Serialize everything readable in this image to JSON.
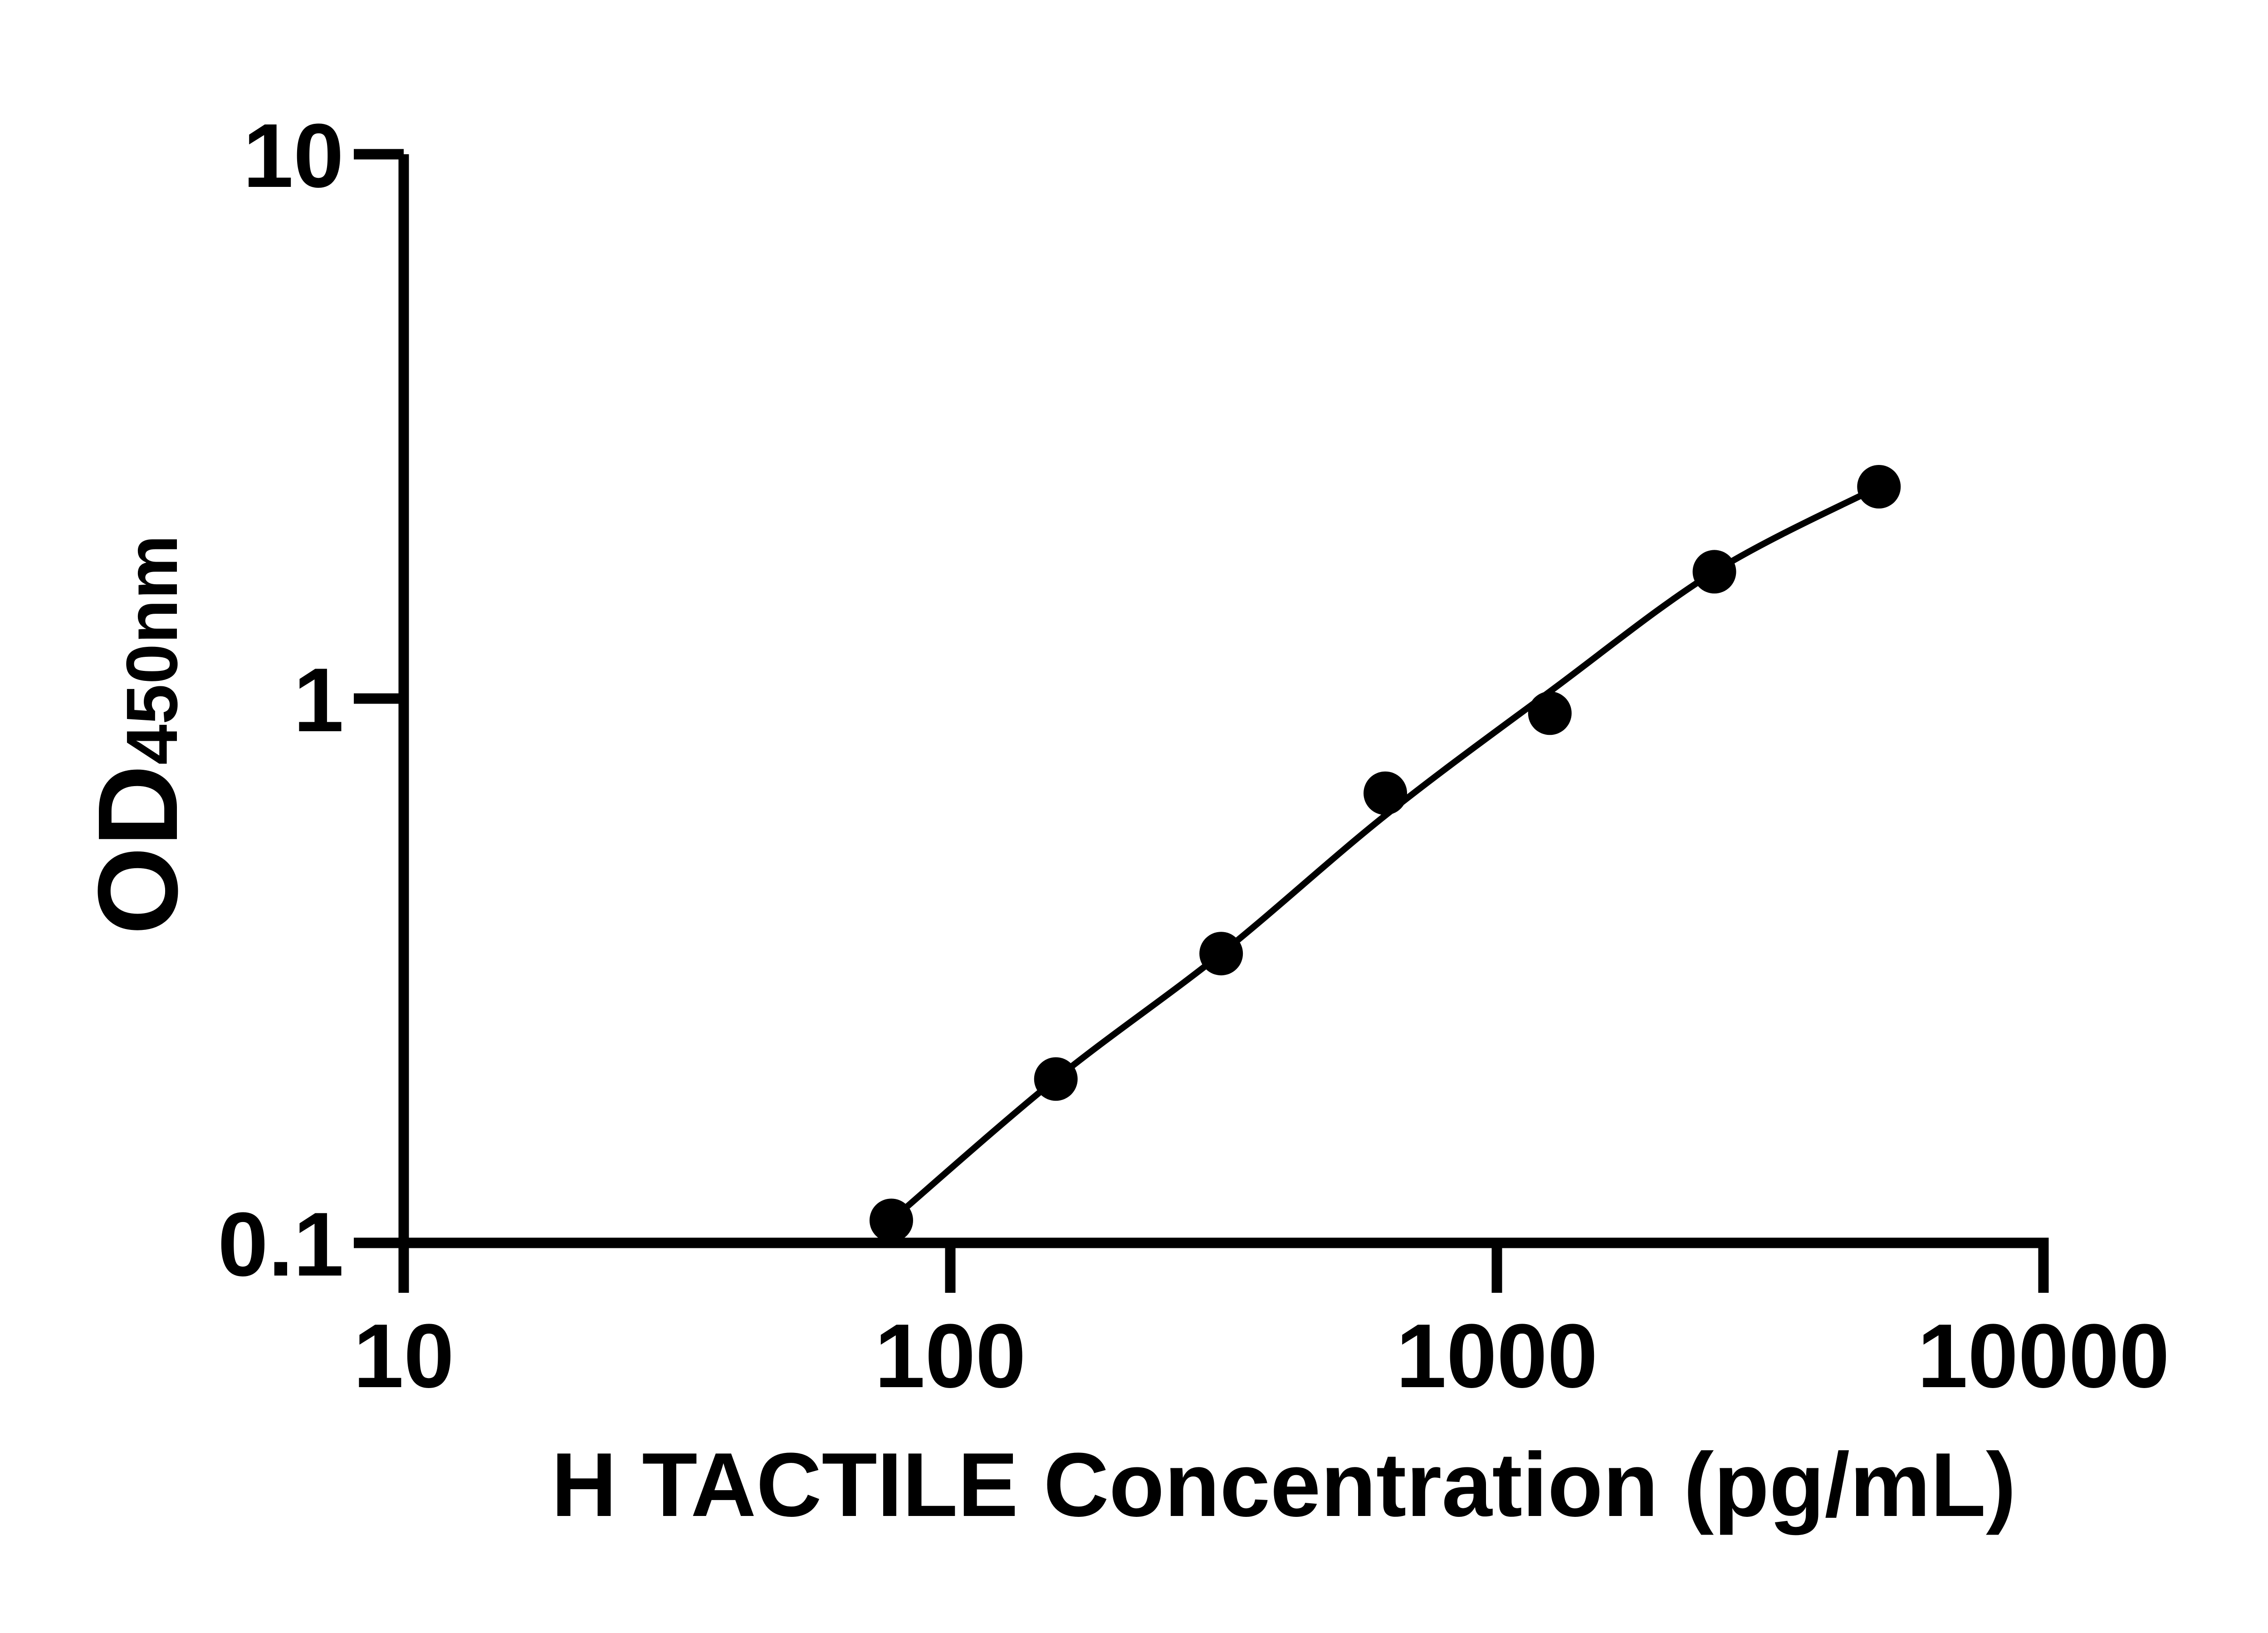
{
  "page": {
    "background_color": "#ffffff",
    "foreground_color": "#000000"
  },
  "chart_data": {
    "type": "scatter",
    "subtype": "ELISA standard curve (scatter with fitted line)",
    "title": "",
    "xlabel": "H TACTILE Concentration (pg/mL)",
    "ylabel": "OD450nm",
    "ylabel_main": "OD",
    "ylabel_sub": "450nm",
    "x_scale": "log10",
    "y_scale": "log10",
    "xlim": [
      10,
      10000
    ],
    "ylim": [
      0.1,
      10
    ],
    "grid": false,
    "legend_position": "none",
    "x_ticks": [
      {
        "value": 10,
        "label": "10"
      },
      {
        "value": 100,
        "label": "100"
      },
      {
        "value": 1000,
        "label": "1000"
      },
      {
        "value": 10000,
        "label": "10000"
      }
    ],
    "y_ticks": [
      {
        "value": 10,
        "label": "10"
      },
      {
        "value": 1,
        "label": "1"
      },
      {
        "value": 0.1,
        "label": "0.1"
      }
    ],
    "series": [
      {
        "name": "standard-points",
        "type": "scatter",
        "marker": "filled-circle",
        "color": "#000000",
        "points": [
          {
            "x": 78,
            "y": 0.11
          },
          {
            "x": 156,
            "y": 0.2
          },
          {
            "x": 313,
            "y": 0.34
          },
          {
            "x": 625,
            "y": 0.67
          },
          {
            "x": 1250,
            "y": 0.94
          },
          {
            "x": 2500,
            "y": 1.71
          },
          {
            "x": 5000,
            "y": 2.45
          }
        ]
      },
      {
        "name": "fitted-curve",
        "type": "line",
        "color": "#000000",
        "points": [
          {
            "x": 78,
            "y": 0.11
          },
          {
            "x": 156,
            "y": 0.2
          },
          {
            "x": 313,
            "y": 0.34
          },
          {
            "x": 625,
            "y": 0.61
          },
          {
            "x": 1250,
            "y": 1.03
          },
          {
            "x": 2500,
            "y": 1.71
          },
          {
            "x": 5000,
            "y": 2.45
          }
        ]
      }
    ]
  }
}
